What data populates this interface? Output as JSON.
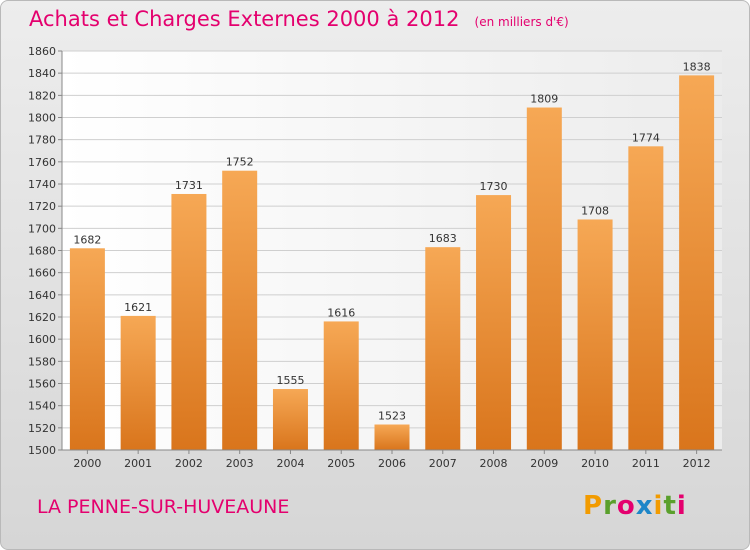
{
  "title": "Achats et Charges Externes 2000 à 2012",
  "unit": "(en milliers d'€)",
  "commune": "LA PENNE-SUR-HUVEAUNE",
  "brand": {
    "letters": [
      "P",
      "r",
      "o",
      "x",
      "i",
      "t",
      "i"
    ],
    "colors": [
      "#f29b00",
      "#5aa02c",
      "#e4006e",
      "#1d86c8",
      "#f29b00",
      "#5aa02c",
      "#e4006e"
    ]
  },
  "colors": {
    "title": "#e4006e",
    "bar_top": "#f6a855",
    "bar_bottom": "#d9751c"
  },
  "chart_data": {
    "type": "bar",
    "categories": [
      "2000",
      "2001",
      "2002",
      "2003",
      "2004",
      "2005",
      "2006",
      "2007",
      "2008",
      "2009",
      "2010",
      "2011",
      "2012"
    ],
    "values": [
      1682,
      1621,
      1731,
      1752,
      1555,
      1616,
      1523,
      1683,
      1730,
      1809,
      1708,
      1774,
      1838
    ],
    "ylim": [
      1500,
      1860
    ],
    "yticks": [
      1500,
      1520,
      1540,
      1560,
      1580,
      1600,
      1620,
      1640,
      1660,
      1680,
      1700,
      1720,
      1740,
      1760,
      1780,
      1800,
      1820,
      1840,
      1860
    ],
    "grid": true
  }
}
